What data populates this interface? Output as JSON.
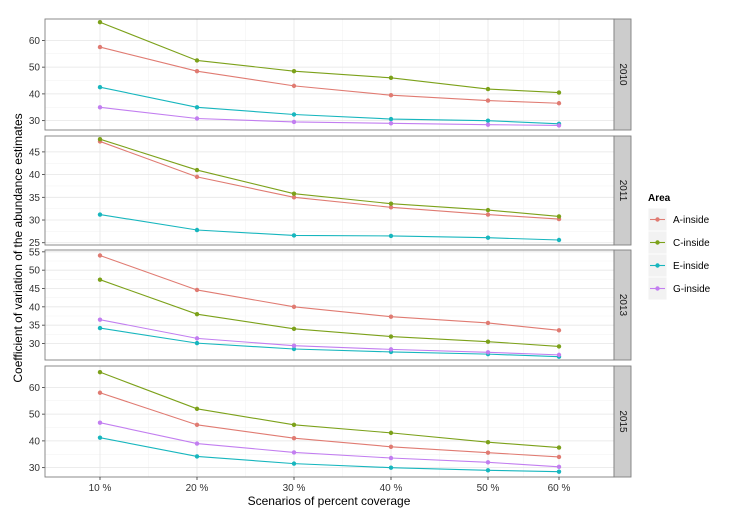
{
  "chart_data": {
    "type": "line",
    "xlabel": "Scenarios of percent coverage",
    "ylabel": "Coefficient of variation of the abundance estimates",
    "categories": [
      "10 %",
      "20 %",
      "30 %",
      "40 %",
      "50 %",
      "60 %"
    ],
    "legend": {
      "title": "Area",
      "position": "right",
      "entries": [
        {
          "name": "A-inside",
          "color": "#e07b72"
        },
        {
          "name": "C-inside",
          "color": "#7ca11a"
        },
        {
          "name": "E-inside",
          "color": "#17b6be"
        },
        {
          "name": "G-inside",
          "color": "#c27ef0"
        }
      ]
    },
    "grid": true,
    "panels": [
      {
        "label": "2010",
        "ylim": [
          26.5,
          68
        ],
        "yticks": [
          30,
          40,
          50,
          60
        ],
        "series": [
          {
            "name": "A-inside",
            "values": [
              57.5,
              48.5,
              43,
              39.5,
              37.5,
              36.5
            ]
          },
          {
            "name": "C-inside",
            "values": [
              66.8,
              52.5,
              48.5,
              46,
              41.8,
              40.5
            ]
          },
          {
            "name": "E-inside",
            "values": [
              42.5,
              35,
              32.3,
              30.6,
              30,
              28.8
            ]
          },
          {
            "name": "G-inside",
            "values": [
              35,
              30.8,
              29.5,
              29,
              28.5,
              28.2
            ]
          }
        ]
      },
      {
        "label": "2011",
        "ylim": [
          24.5,
          48.5
        ],
        "yticks": [
          25,
          30,
          35,
          40,
          45
        ],
        "series": [
          {
            "name": "A-inside",
            "values": [
              47.3,
              39.5,
              35,
              32.8,
              31.2,
              30.2
            ]
          },
          {
            "name": "C-inside",
            "values": [
              47.8,
              41,
              35.8,
              33.6,
              32.2,
              30.8
            ]
          },
          {
            "name": "E-inside",
            "values": [
              31.2,
              27.8,
              26.6,
              26.5,
              26.1,
              25.6
            ]
          }
        ]
      },
      {
        "label": "2013",
        "ylim": [
          25.5,
          55.5
        ],
        "yticks": [
          30,
          35,
          40,
          45,
          50,
          55
        ],
        "series": [
          {
            "name": "A-inside",
            "values": [
              54,
              44.6,
              40,
              37.3,
              35.6,
              33.6
            ]
          },
          {
            "name": "C-inside",
            "values": [
              47.4,
              38,
              34,
              31.9,
              30.5,
              29.2
            ]
          },
          {
            "name": "E-inside",
            "values": [
              34.2,
              30.1,
              28.5,
              27.7,
              27.1,
              26.4
            ]
          },
          {
            "name": "G-inside",
            "values": [
              36.5,
              31.4,
              29.4,
              28.4,
              27.6,
              26.9
            ]
          }
        ]
      },
      {
        "label": "2015",
        "ylim": [
          26.5,
          68
        ],
        "yticks": [
          30,
          40,
          50,
          60
        ],
        "series": [
          {
            "name": "A-inside",
            "values": [
              58,
              46,
              41,
              37.8,
              35.6,
              34
            ]
          },
          {
            "name": "C-inside",
            "values": [
              65.7,
              52,
              46,
              43,
              39.5,
              37.5
            ]
          },
          {
            "name": "E-inside",
            "values": [
              41.2,
              34.2,
              31.5,
              30,
              29,
              28.5
            ]
          },
          {
            "name": "G-inside",
            "values": [
              46.8,
              39,
              35.7,
              33.6,
              32,
              30.3
            ]
          }
        ]
      }
    ]
  }
}
